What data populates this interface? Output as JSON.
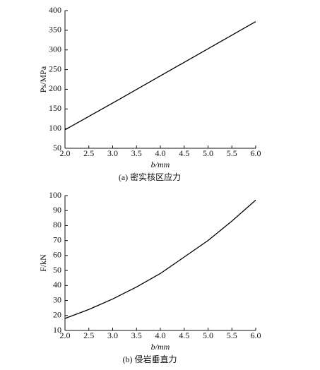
{
  "chart_data": [
    {
      "type": "line",
      "caption": "(a) 密实核区应力",
      "xlabel": "b/mm",
      "ylabel": "Ps/MPa",
      "x": [
        2.0,
        3.0,
        4.0,
        5.0,
        6.0
      ],
      "series": [
        {
          "color": "#000000",
          "values": [
            97,
            165,
            234,
            303,
            372
          ]
        }
      ],
      "xlim": [
        2.0,
        6.0
      ],
      "ylim": [
        50,
        400
      ],
      "xticks": [
        {
          "value": 2,
          "label": "2.0"
        },
        2.5,
        {
          "value": 3,
          "label": "3.0"
        },
        3.5,
        {
          "value": 4,
          "label": "4.0"
        },
        4.5,
        {
          "value": 5,
          "label": "5.0"
        },
        5.5,
        {
          "value": 6,
          "label": "6.0"
        }
      ],
      "yticks": [
        50,
        100,
        150,
        200,
        250,
        300,
        350,
        400
      ]
    },
    {
      "type": "line",
      "caption": "(b) 侵岩垂直力",
      "xlabel": "b/mm",
      "ylabel": "F/kN",
      "x": [
        2.0,
        2.5,
        3.0,
        3.5,
        4.0,
        4.5,
        5.0,
        5.5,
        6.0
      ],
      "series": [
        {
          "color": "#000000",
          "values": [
            18,
            24,
            31,
            39,
            48,
            59,
            70,
            83,
            97
          ]
        }
      ],
      "xlim": [
        2.0,
        6.0
      ],
      "ylim": [
        10,
        100
      ],
      "xticks": [
        {
          "value": 2,
          "label": "2.0"
        },
        2.5,
        {
          "value": 3,
          "label": "3.0"
        },
        3.5,
        {
          "value": 4,
          "label": "4.0"
        },
        4.5,
        {
          "value": 5,
          "label": "5.0"
        },
        5.5,
        {
          "value": 6,
          "label": "6.0"
        }
      ],
      "yticks": [
        10,
        20,
        30,
        40,
        50,
        60,
        70,
        80,
        90,
        100
      ]
    }
  ]
}
